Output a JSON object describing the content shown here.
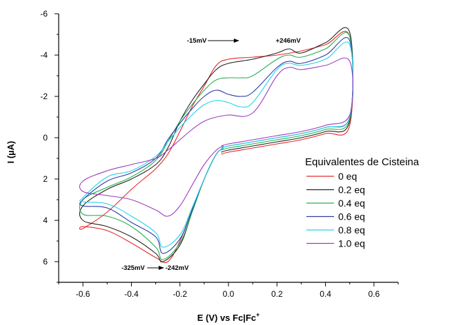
{
  "chart_data": {
    "type": "line",
    "title": "",
    "xlabel": "E (V) vs Fc|Fc",
    "xlabel_sup": "+",
    "ylabel_main": "I (",
    "ylabel_mu": "µ",
    "ylabel_unit": "A)",
    "xlim": [
      -0.7,
      0.7
    ],
    "ylim": [
      -6,
      7
    ],
    "y_inverted": true,
    "xticks": [
      -0.6,
      -0.4,
      -0.2,
      0.0,
      0.2,
      0.4,
      0.6
    ],
    "xtick_labels": [
      "-0.6",
      "-0.4",
      "-0.2",
      "0.0",
      "0.2",
      "0.4",
      "0.6"
    ],
    "yticks": [
      -6,
      -4,
      -2,
      0,
      2,
      4,
      6
    ],
    "ytick_labels": [
      "-6",
      "-4",
      "-2",
      "0",
      "2",
      "4",
      "6"
    ],
    "grid": false,
    "legend": {
      "title": "Equivalentes de Cisteina",
      "placement": "right"
    },
    "series": [
      {
        "name": "0 eq",
        "color": "#e8262b",
        "x": [
          -0.03,
          0.0,
          0.1,
          0.2,
          0.3,
          0.4,
          0.5,
          0.5,
          0.4,
          0.3,
          0.2,
          0.1,
          0.0,
          -0.05,
          -0.1,
          -0.15,
          -0.2,
          -0.25,
          -0.3,
          -0.35,
          -0.4,
          -0.5,
          -0.6,
          -0.6,
          -0.5,
          -0.4,
          -0.3,
          -0.25,
          -0.2,
          -0.15,
          -0.1,
          -0.05,
          -0.02
        ],
        "y": [
          0.8,
          0.7,
          0.5,
          0.3,
          0.1,
          -0.2,
          -0.6,
          -4.9,
          -4.5,
          -4.2,
          -4.0,
          -3.9,
          -3.8,
          -3.5,
          -2.5,
          -1.5,
          -0.3,
          0.8,
          1.5,
          2.0,
          2.5,
          3.6,
          4.4,
          4.3,
          4.5,
          5.1,
          5.8,
          6.0,
          5.0,
          3.5,
          2.0,
          0.8,
          0.5
        ]
      },
      {
        "name": "0.2 eq",
        "color": "#222222",
        "x": [
          -0.03,
          0.0,
          0.1,
          0.2,
          0.3,
          0.4,
          0.5,
          0.5,
          0.4,
          0.3,
          0.25,
          0.2,
          0.1,
          0.0,
          -0.05,
          -0.1,
          -0.15,
          -0.2,
          -0.25,
          -0.3,
          -0.4,
          -0.5,
          -0.6,
          -0.6,
          -0.5,
          -0.4,
          -0.3,
          -0.27,
          -0.2,
          -0.15,
          -0.1,
          -0.05,
          -0.02
        ],
        "y": [
          0.7,
          0.6,
          0.4,
          0.2,
          0.0,
          -0.3,
          -0.8,
          -5.1,
          -4.6,
          -4.1,
          -4.3,
          -4.1,
          -3.8,
          -3.6,
          -3.3,
          -2.6,
          -1.8,
          -0.8,
          0.5,
          1.3,
          2.0,
          2.5,
          3.3,
          4.0,
          4.3,
          4.8,
          5.6,
          6.0,
          5.2,
          3.6,
          2.0,
          0.8,
          0.5
        ]
      },
      {
        "name": "0.4 eq",
        "color": "#22b14c",
        "x": [
          -0.03,
          0.0,
          0.1,
          0.2,
          0.3,
          0.4,
          0.5,
          0.5,
          0.4,
          0.3,
          0.25,
          0.2,
          0.1,
          0.05,
          0.0,
          -0.05,
          -0.1,
          -0.15,
          -0.2,
          -0.25,
          -0.3,
          -0.4,
          -0.5,
          -0.6,
          -0.6,
          -0.5,
          -0.4,
          -0.3,
          -0.27,
          -0.2,
          -0.15,
          -0.1,
          -0.05,
          -0.02
        ],
        "y": [
          0.6,
          0.5,
          0.3,
          0.1,
          -0.1,
          -0.4,
          -0.9,
          -4.9,
          -4.3,
          -3.9,
          -4.0,
          -3.8,
          -3.0,
          -2.9,
          -2.9,
          -2.8,
          -2.3,
          -1.6,
          -0.8,
          0.2,
          1.1,
          1.9,
          2.4,
          3.0,
          3.7,
          3.8,
          4.3,
          5.3,
          5.9,
          5.1,
          3.6,
          2.0,
          0.8,
          0.5
        ]
      },
      {
        "name": "0.6 eq",
        "color": "#2b3aa8",
        "x": [
          -0.03,
          0.0,
          0.1,
          0.2,
          0.3,
          0.4,
          0.5,
          0.5,
          0.4,
          0.3,
          0.25,
          0.2,
          0.1,
          0.05,
          0.0,
          -0.05,
          -0.1,
          -0.15,
          -0.2,
          -0.25,
          -0.3,
          -0.4,
          -0.5,
          -0.6,
          -0.6,
          -0.5,
          -0.4,
          -0.3,
          -0.27,
          -0.2,
          -0.15,
          -0.1,
          -0.05,
          -0.02
        ],
        "y": [
          0.5,
          0.4,
          0.2,
          0.0,
          -0.2,
          -0.5,
          -1.0,
          -4.7,
          -4.0,
          -3.6,
          -3.7,
          -3.4,
          -2.2,
          -2.0,
          -2.1,
          -2.3,
          -2.0,
          -1.4,
          -0.7,
          0.1,
          1.0,
          1.7,
          2.1,
          3.0,
          3.3,
          3.4,
          4.1,
          4.8,
          5.6,
          4.9,
          3.5,
          2.0,
          0.8,
          0.5
        ]
      },
      {
        "name": "0.8 eq",
        "color": "#22d3e6",
        "x": [
          -0.03,
          0.0,
          0.1,
          0.2,
          0.3,
          0.4,
          0.5,
          0.5,
          0.4,
          0.3,
          0.25,
          0.2,
          0.1,
          0.05,
          0.0,
          -0.05,
          -0.1,
          -0.15,
          -0.2,
          -0.25,
          -0.3,
          -0.4,
          -0.5,
          -0.6,
          -0.6,
          -0.5,
          -0.4,
          -0.3,
          -0.27,
          -0.2,
          -0.15,
          -0.1,
          -0.05,
          -0.02
        ],
        "y": [
          0.5,
          0.4,
          0.2,
          0.0,
          -0.2,
          -0.5,
          -1.0,
          -4.5,
          -3.8,
          -3.5,
          -3.6,
          -3.3,
          -1.7,
          -1.5,
          -1.7,
          -1.8,
          -1.6,
          -1.1,
          -0.5,
          0.2,
          0.9,
          1.6,
          1.9,
          2.9,
          3.1,
          3.2,
          3.8,
          4.6,
          5.3,
          4.7,
          3.4,
          2.0,
          0.8,
          0.5
        ]
      },
      {
        "name": "1.0 eq",
        "color": "#9c3bbf",
        "x": [
          -0.03,
          0.0,
          0.1,
          0.2,
          0.3,
          0.4,
          0.5,
          0.5,
          0.4,
          0.3,
          0.25,
          0.2,
          0.1,
          0.0,
          -0.05,
          -0.1,
          -0.15,
          -0.2,
          -0.25,
          -0.3,
          -0.4,
          -0.5,
          -0.6,
          -0.6,
          -0.5,
          -0.4,
          -0.3,
          -0.25,
          -0.2,
          -0.15,
          -0.1,
          -0.05,
          -0.02
        ],
        "y": [
          0.4,
          0.3,
          0.1,
          -0.1,
          -0.3,
          -0.6,
          -1.1,
          -3.7,
          -3.5,
          -3.3,
          -3.4,
          -3.0,
          -1.2,
          -1.1,
          -1.0,
          -0.8,
          -0.4,
          0.1,
          0.6,
          1.0,
          1.3,
          1.6,
          2.1,
          2.6,
          2.8,
          3.0,
          3.5,
          3.8,
          3.3,
          2.3,
          1.3,
          0.6,
          0.4
        ]
      }
    ],
    "annotations": [
      {
        "text": "-15mV",
        "x": -0.09,
        "y": -4.7,
        "anchor": "end"
      },
      {
        "text": "+246mV",
        "x": 0.195,
        "y": -4.7,
        "anchor": "start"
      },
      {
        "text": "-325mV",
        "x": -0.345,
        "y": 6.3,
        "anchor": "end"
      },
      {
        "text": "-242mV",
        "x": -0.26,
        "y": 6.3,
        "anchor": "start"
      }
    ],
    "arrows": [
      {
        "x1": -0.085,
        "x2": 0.045,
        "y": -4.7
      },
      {
        "x1": -0.335,
        "x2": -0.265,
        "y": 6.3
      }
    ]
  }
}
